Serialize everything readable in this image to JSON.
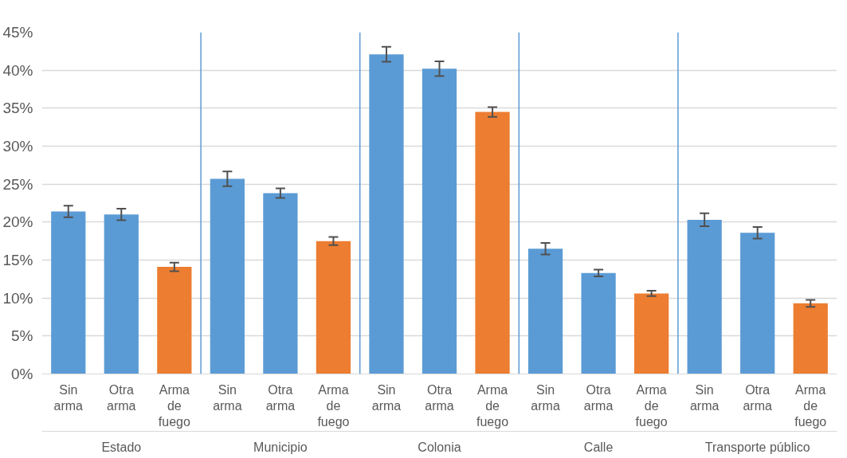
{
  "chart_data": {
    "type": "bar",
    "categories": [
      "Sin arma",
      "Otra arma",
      "Arma de fuego",
      "Sin arma",
      "Otra arma",
      "Arma de fuego",
      "Sin arma",
      "Otra arma",
      "Arma de fuego",
      "Sin arma",
      "Otra arma",
      "Arma de fuego",
      "Sin arma",
      "Otra arma",
      "Arma de fuego"
    ],
    "values": [
      21.4,
      21.0,
      14.1,
      25.7,
      23.8,
      17.5,
      42.1,
      40.2,
      34.5,
      16.5,
      13.3,
      10.6,
      20.3,
      18.6,
      9.3
    ],
    "errors": [
      0.76,
      0.76,
      0.56,
      0.96,
      0.63,
      0.54,
      0.98,
      0.98,
      0.65,
      0.76,
      0.45,
      0.35,
      0.85,
      0.76,
      0.45
    ],
    "colors": [
      "#5b9bd5",
      "#5b9bd5",
      "#ed7d31",
      "#5b9bd5",
      "#5b9bd5",
      "#ed7d31",
      "#5b9bd5",
      "#5b9bd5",
      "#ed7d31",
      "#5b9bd5",
      "#5b9bd5",
      "#ed7d31",
      "#5b9bd5",
      "#5b9bd5",
      "#ed7d31"
    ],
    "annotations": [
      "Estado",
      "Municipio",
      "Colonia",
      "Calle",
      "Transporte público"
    ],
    "ylim": [
      0,
      45
    ],
    "yticks": [
      {
        "value": 0,
        "label": "0%"
      },
      {
        "value": 5,
        "label": "5%"
      },
      {
        "value": 10,
        "label": "10%"
      },
      {
        "value": 15,
        "label": "15%"
      },
      {
        "value": 20,
        "label": "20%"
      },
      {
        "value": 25,
        "label": "25%"
      },
      {
        "value": 30,
        "label": "30%"
      },
      {
        "value": 35,
        "label": "35%"
      },
      {
        "value": 40,
        "label": "40%"
      },
      {
        "value": 45,
        "label": "45%"
      }
    ],
    "grid": "y"
  }
}
